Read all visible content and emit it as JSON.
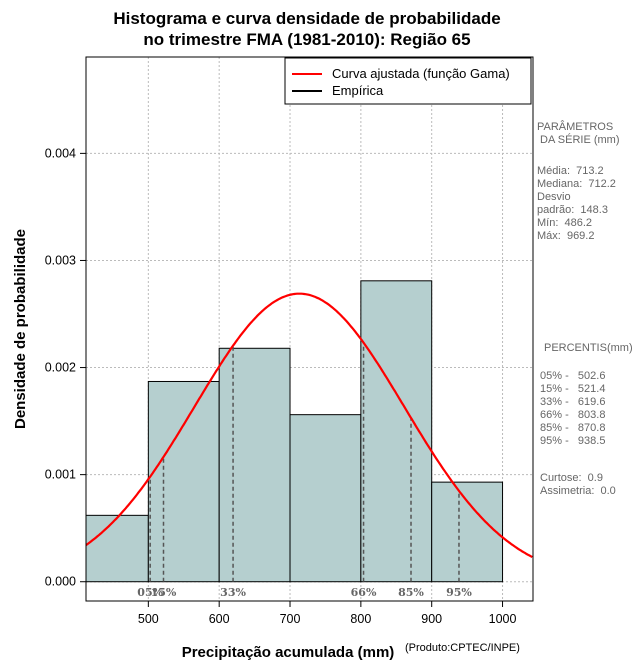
{
  "chart_data": {
    "type": "bar",
    "title_line1": "Histograma e curva densidade de probabilidade",
    "title_line2": "no trimestre FMA (1981-2010): Região 65",
    "xlabel": "Precipitação acumulada (mm)",
    "ylabel": "Densidade de probabilidade",
    "credit": "(Produto:CPTEC/INPE)",
    "xlim": [
      412,
      1043
    ],
    "ylim": [
      -0.00018,
      0.0049
    ],
    "x_ticks": [
      500,
      600,
      700,
      800,
      900,
      1000
    ],
    "y_ticks": [
      0.0,
      0.001,
      0.002,
      0.003,
      0.004
    ],
    "y_tick_labels": [
      "0.000",
      "0.001",
      "0.002",
      "0.003",
      "0.004"
    ],
    "bins": [
      {
        "from": 400,
        "to": 500,
        "density": 0.00062
      },
      {
        "from": 500,
        "to": 600,
        "density": 0.00187
      },
      {
        "from": 600,
        "to": 700,
        "density": 0.00218
      },
      {
        "from": 700,
        "to": 800,
        "density": 0.00156
      },
      {
        "from": 800,
        "to": 900,
        "density": 0.00281
      },
      {
        "from": 900,
        "to": 1000,
        "density": 0.00093
      }
    ],
    "fit": {
      "name": "Curva ajustada (função Gama)",
      "mean": 713.2,
      "sd": 148.3,
      "color": "#ff0000"
    },
    "empirical_name": "Empírica",
    "bar_color": "#b5cfcf",
    "percentiles": [
      {
        "label": "05%",
        "value": 502.6
      },
      {
        "label": "15%",
        "value": 521.4
      },
      {
        "label": "33%",
        "value": 619.6
      },
      {
        "label": "66%",
        "value": 803.8
      },
      {
        "label": "85%",
        "value": 870.8
      },
      {
        "label": "95%",
        "value": 938.5
      }
    ],
    "legend_position": "top-right",
    "grid": true
  },
  "side_panel": {
    "params_heading": "PARÂMETROS\n DA SÉRIE (mm)",
    "params_body": "Média:  713.2\nMediana:  712.2\nDesvio\npadrão:  148.3\nMín:  486.2\nMáx:  969.2",
    "pct_heading": "PERCENTIS(mm)",
    "pct_body": "05% -   502.6\n15% -   521.4\n33% -   619.6\n66% -   803.8\n85% -   870.8\n95% -   938.5",
    "stats_body": "Curtose:  0.9\nAssimetria:  0.0"
  }
}
